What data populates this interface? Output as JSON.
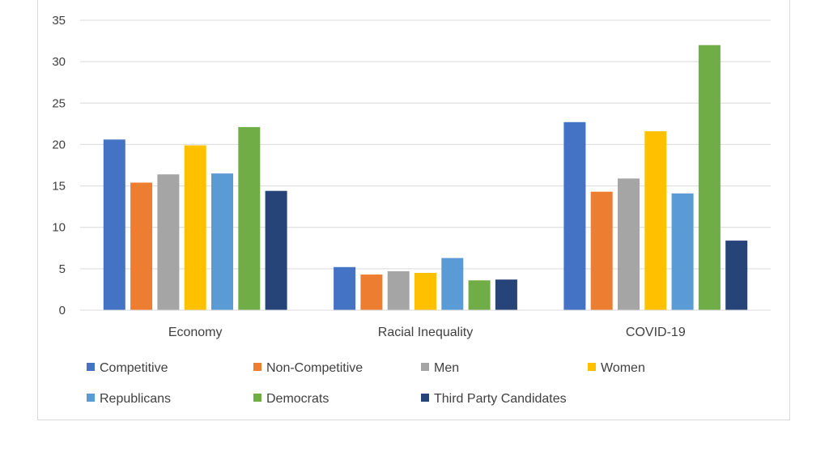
{
  "chart_data": {
    "type": "bar",
    "title": "",
    "xlabel": "",
    "ylabel": "",
    "ylim": [
      0,
      35
    ],
    "yticks": [
      0,
      5,
      10,
      15,
      20,
      25,
      30,
      35
    ],
    "grid": true,
    "legend_position": "bottom",
    "categories": [
      "Economy",
      "Racial Inequality",
      "COVID-19"
    ],
    "series": [
      {
        "name": "Competitive",
        "color": "#4472c4",
        "values": [
          20.6,
          5.2,
          22.7
        ]
      },
      {
        "name": "Non-Competitive",
        "color": "#ed7d31",
        "values": [
          15.4,
          4.3,
          14.3
        ]
      },
      {
        "name": "Men",
        "color": "#a5a5a5",
        "values": [
          16.4,
          4.7,
          15.9
        ]
      },
      {
        "name": "Women",
        "color": "#ffc000",
        "values": [
          19.9,
          4.5,
          21.6
        ]
      },
      {
        "name": "Republicans",
        "color": "#5b9bd5",
        "values": [
          16.5,
          6.3,
          14.1
        ]
      },
      {
        "name": "Democrats",
        "color": "#70ad47",
        "values": [
          22.1,
          3.6,
          32.0
        ]
      },
      {
        "name": "Third Party Candidates",
        "color": "#264478",
        "values": [
          14.4,
          3.7,
          8.4
        ]
      }
    ]
  }
}
